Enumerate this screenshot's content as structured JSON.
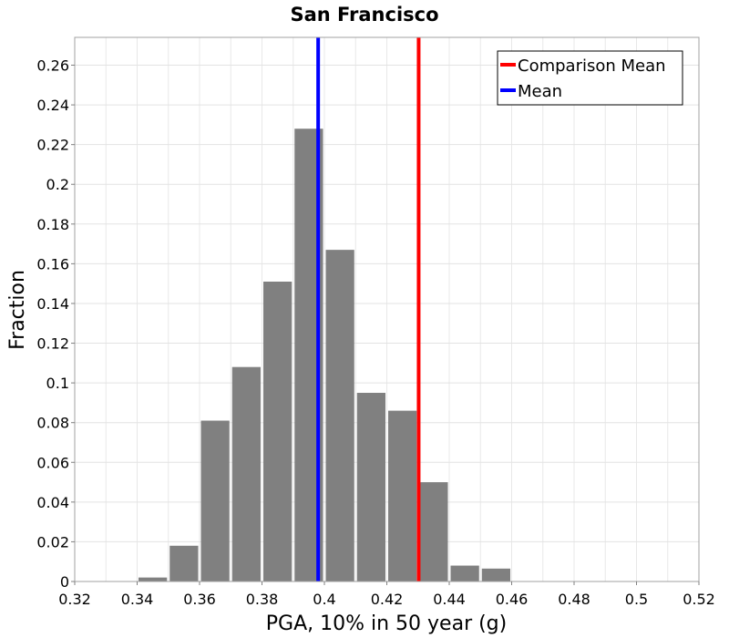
{
  "chart_data": {
    "type": "bar",
    "title": "San Francisco",
    "xlabel": "PGA, 10% in 50 year (g)",
    "ylabel": "Fraction",
    "xlim": [
      0.32,
      0.52
    ],
    "ylim": [
      0,
      0.274
    ],
    "grid": true,
    "bin_width": 0.01,
    "bar_color": "#808080",
    "x_ticks": [
      0.32,
      0.34,
      0.36,
      0.38,
      0.4,
      0.42,
      0.44,
      0.46,
      0.48,
      0.5,
      0.52
    ],
    "x_tick_labels": [
      "0.32",
      "0.34",
      "0.36",
      "0.38",
      "0.4",
      "0.42",
      "0.44",
      "0.46",
      "0.48",
      "0.5",
      "0.52"
    ],
    "y_ticks": [
      0,
      0.02,
      0.04,
      0.06,
      0.08,
      0.1,
      0.12,
      0.14,
      0.16,
      0.18,
      0.2,
      0.22,
      0.24,
      0.26
    ],
    "y_tick_labels": [
      "0",
      "0.02",
      "0.04",
      "0.06",
      "0.08",
      "0.1",
      "0.12",
      "0.14",
      "0.16",
      "0.18",
      "0.2",
      "0.22",
      "0.24",
      "0.26"
    ],
    "bins": [
      {
        "start": 0.34,
        "end": 0.35,
        "value": 0.002
      },
      {
        "start": 0.35,
        "end": 0.36,
        "value": 0.018
      },
      {
        "start": 0.36,
        "end": 0.37,
        "value": 0.081
      },
      {
        "start": 0.37,
        "end": 0.38,
        "value": 0.108
      },
      {
        "start": 0.38,
        "end": 0.39,
        "value": 0.151
      },
      {
        "start": 0.39,
        "end": 0.4,
        "value": 0.228
      },
      {
        "start": 0.4,
        "end": 0.41,
        "value": 0.167
      },
      {
        "start": 0.41,
        "end": 0.42,
        "value": 0.095
      },
      {
        "start": 0.42,
        "end": 0.43,
        "value": 0.086
      },
      {
        "start": 0.43,
        "end": 0.44,
        "value": 0.05
      },
      {
        "start": 0.44,
        "end": 0.45,
        "value": 0.008
      },
      {
        "start": 0.45,
        "end": 0.46,
        "value": 0.0065
      }
    ],
    "vertical_lines": [
      {
        "name": "Comparison Mean",
        "x": 0.4302,
        "color": "#ff0000"
      },
      {
        "name": "Mean",
        "x": 0.398,
        "color": "#0000ff"
      }
    ],
    "legend": {
      "placement": "top-right",
      "entries": [
        {
          "label": "Comparison Mean",
          "color": "#ff0000"
        },
        {
          "label": "Mean",
          "color": "#0000ff"
        }
      ]
    }
  }
}
